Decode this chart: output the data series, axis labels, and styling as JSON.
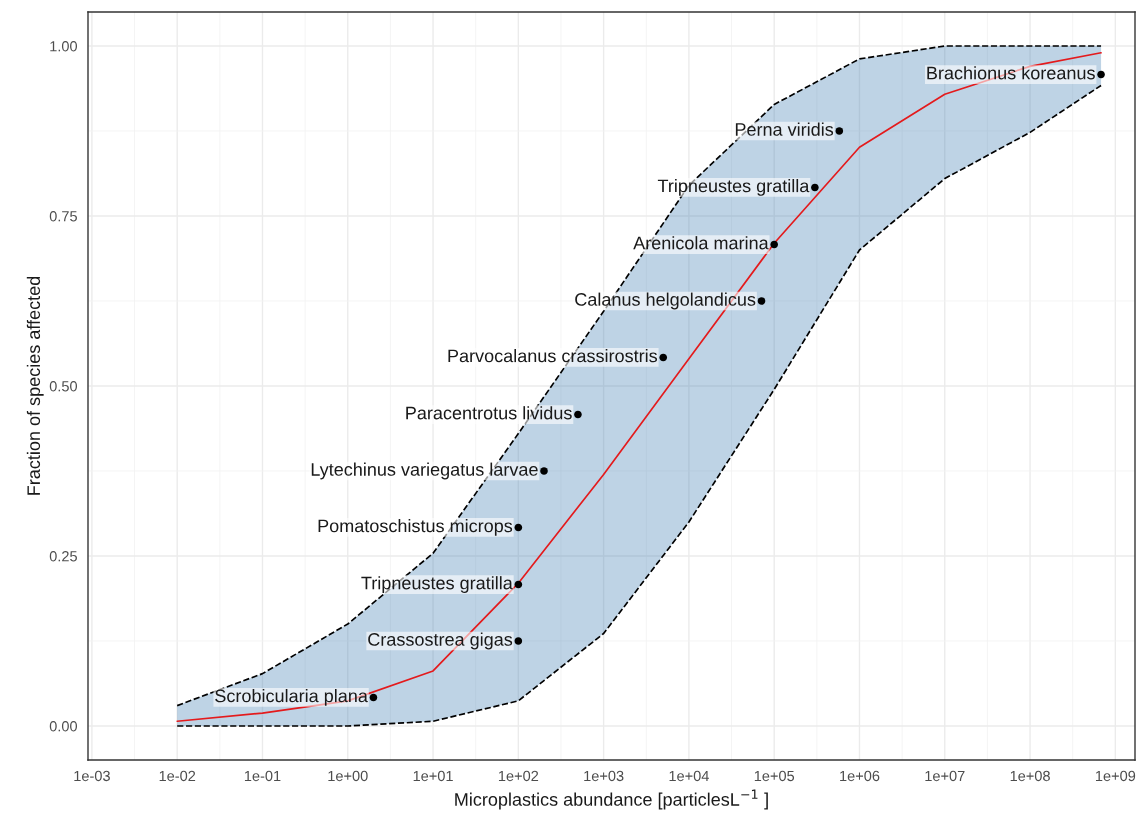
{
  "chart_data": {
    "type": "scatter",
    "xlabel": "Microplastics abundance [particlesL$^{−1}$ ]",
    "ylabel": "Fraction of species affected",
    "log": "x",
    "xlim": [
      0.0009,
      1700000000.0
    ],
    "ylim": [
      -0.05,
      1.05
    ],
    "xticks": [
      {
        "value": 0.001,
        "label": "1e-03"
      },
      {
        "value": 0.01,
        "label": "1e-02"
      },
      {
        "value": 0.1,
        "label": "1e-01"
      },
      {
        "value": 1,
        "label": "1e+00"
      },
      {
        "value": 10,
        "label": "1e+01"
      },
      {
        "value": 100,
        "label": "1e+02"
      },
      {
        "value": 1000,
        "label": "1e+03"
      },
      {
        "value": 10000,
        "label": "1e+04"
      },
      {
        "value": 100000,
        "label": "1e+05"
      },
      {
        "value": 1000000,
        "label": "1e+06"
      },
      {
        "value": 10000000,
        "label": "1e+07"
      },
      {
        "value": 100000000,
        "label": "1e+08"
      },
      {
        "value": 1000000000,
        "label": "1e+09"
      }
    ],
    "yticks": [
      {
        "value": 0,
        "label": "0.00"
      },
      {
        "value": 0.25,
        "label": "0.25"
      },
      {
        "value": 0.5,
        "label": "0.50"
      },
      {
        "value": 0.75,
        "label": "0.75"
      },
      {
        "value": 1,
        "label": "1.00"
      }
    ],
    "grid": true,
    "series": [
      {
        "type": "line",
        "color": "#e41a1c",
        "x": [
          0.01,
          0.1,
          1,
          10,
          100,
          1000,
          10000,
          100000,
          1000000,
          10000000,
          100000000,
          680000000
        ],
        "values": [
          0.007,
          0.019,
          0.037,
          0.081,
          0.21,
          0.37,
          0.54,
          0.71,
          0.851,
          0.929,
          0.97,
          0.99
        ],
        "lower": [
          0,
          0,
          0,
          0.007,
          0.037,
          0.136,
          0.3,
          0.495,
          0.7,
          0.805,
          0.873,
          0.942
        ],
        "upper": [
          0.03,
          0.077,
          0.15,
          0.254,
          0.43,
          0.61,
          0.795,
          0.914,
          0.981,
          1.0,
          1.0,
          1.0
        ],
        "line_style": "solid"
      },
      {
        "type": "line",
        "color": "#000000",
        "line_style": "dashed",
        "x": [
          0.01,
          0.1,
          1,
          10,
          100,
          1000,
          10000,
          100000,
          1000000,
          10000000,
          100000000,
          680000000
        ],
        "values": [
          0,
          0,
          0,
          0.007,
          0.037,
          0.136,
          0.3,
          0.495,
          0.7,
          0.805,
          0.873,
          0.942
        ]
      },
      {
        "type": "line",
        "color": "#000000",
        "line_style": "dashed",
        "x": [
          0.01,
          0.1,
          1,
          10,
          100,
          1000,
          10000,
          100000,
          1000000,
          10000000,
          100000000,
          680000000
        ],
        "values": [
          0.03,
          0.077,
          0.15,
          0.254,
          0.43,
          0.61,
          0.795,
          0.914,
          0.981,
          1.0,
          1.0,
          1.0
        ]
      },
      {
        "color": "#000000",
        "marker": "circle",
        "x": [
          2,
          100,
          100,
          100,
          200,
          500,
          5000,
          71000,
          100000,
          300000,
          580000,
          680000000
        ],
        "values": [
          0.042,
          0.125,
          0.208,
          0.292,
          0.375,
          0.458,
          0.542,
          0.625,
          0.708,
          0.792,
          0.875,
          0.958
        ]
      }
    ],
    "annotations": [
      {
        "text": "Scrobicularia plana",
        "x": 2,
        "y": 0.042
      },
      {
        "text": "Crassostrea gigas",
        "x": 100,
        "y": 0.125
      },
      {
        "text": "Tripneustes gratilla",
        "x": 100,
        "y": 0.208
      },
      {
        "text": "Pomatoschistus microps",
        "x": 100,
        "y": 0.292
      },
      {
        "text": "Lytechinus variegatus larvae",
        "x": 200,
        "y": 0.375
      },
      {
        "text": "Paracentrotus lividus",
        "x": 500,
        "y": 0.458
      },
      {
        "text": "Parvocalanus crassirostris",
        "x": 5000,
        "y": 0.542
      },
      {
        "text": "Calanus helgolandicus",
        "x": 71000,
        "y": 0.625
      },
      {
        "text": "Arenicola marina",
        "x": 100000,
        "y": 0.708
      },
      {
        "text": "Tripneustes gratilla",
        "x": 300000,
        "y": 0.792
      },
      {
        "text": "Perna viridis",
        "x": 580000,
        "y": 0.875
      },
      {
        "text": "Brachionus koreanus",
        "x": 680000000,
        "y": 0.958
      }
    ]
  }
}
